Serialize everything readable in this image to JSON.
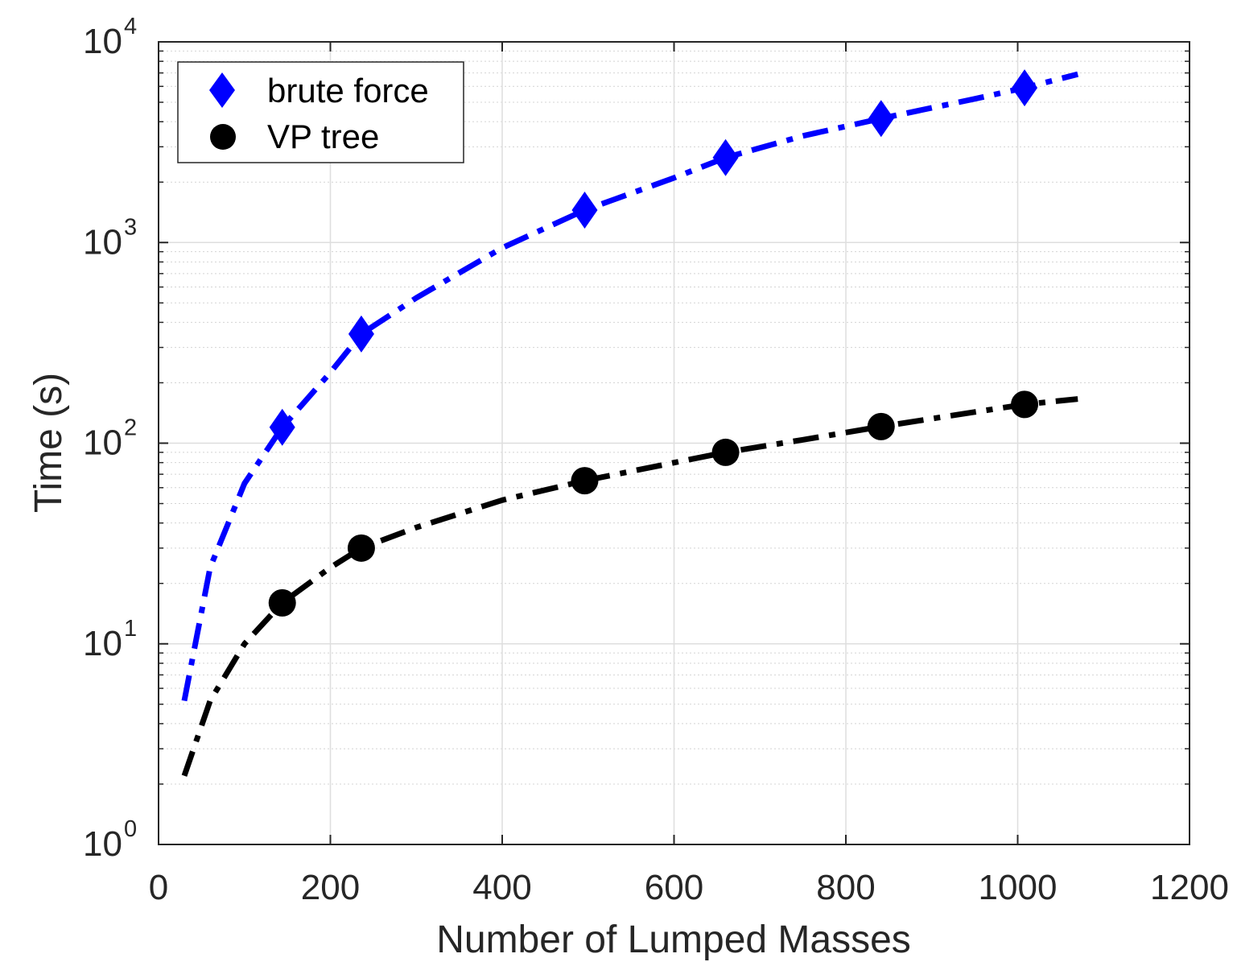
{
  "chart_data": {
    "type": "scatter",
    "xlabel": "Number of Lumped Masses",
    "ylabel": "Time (s)",
    "xlim": [
      0,
      1200
    ],
    "ylim": [
      1,
      10000
    ],
    "yscale": "log",
    "grid": true,
    "minor_grid": true,
    "legend_position": "top-left",
    "x_ticks": [
      0,
      200,
      400,
      600,
      800,
      1000,
      1200
    ],
    "y_ticks": [
      {
        "base": "10",
        "exp": "0",
        "value": 1
      },
      {
        "base": "10",
        "exp": "1",
        "value": 10
      },
      {
        "base": "10",
        "exp": "2",
        "value": 100
      },
      {
        "base": "10",
        "exp": "3",
        "value": 1000
      },
      {
        "base": "10",
        "exp": "4",
        "value": 10000
      }
    ],
    "series": [
      {
        "name": "brute force",
        "marker": "diamond",
        "color": "#0000ff",
        "x": [
          144,
          236,
          496,
          660,
          841,
          1008
        ],
        "y": [
          120,
          350,
          1450,
          2650,
          4150,
          5900
        ],
        "fit": {
          "line_style": "dash-dot",
          "x": [
            30,
            60,
            100,
            144,
            200,
            236,
            300,
            400,
            496,
            600,
            660,
            750,
            841,
            950,
            1008,
            1070
          ],
          "y": [
            5.2,
            24,
            63,
            120,
            225,
            350,
            530,
            940,
            1450,
            2100,
            2650,
            3400,
            4150,
            5200,
            5900,
            6900
          ]
        }
      },
      {
        "name": "VP tree",
        "marker": "circle",
        "color": "#000000",
        "x": [
          144,
          236,
          496,
          660,
          841,
          1008
        ],
        "y": [
          16,
          30,
          65,
          90,
          121,
          156
        ],
        "fit": {
          "line_style": "dash-dot",
          "x": [
            30,
            60,
            100,
            144,
            200,
            236,
            300,
            400,
            496,
            600,
            660,
            750,
            841,
            950,
            1008,
            1070
          ],
          "y": [
            2.2,
            5.2,
            10,
            16,
            24,
            30,
            38,
            52,
            65,
            80,
            90,
            104,
            121,
            143,
            156,
            166
          ]
        }
      }
    ]
  }
}
